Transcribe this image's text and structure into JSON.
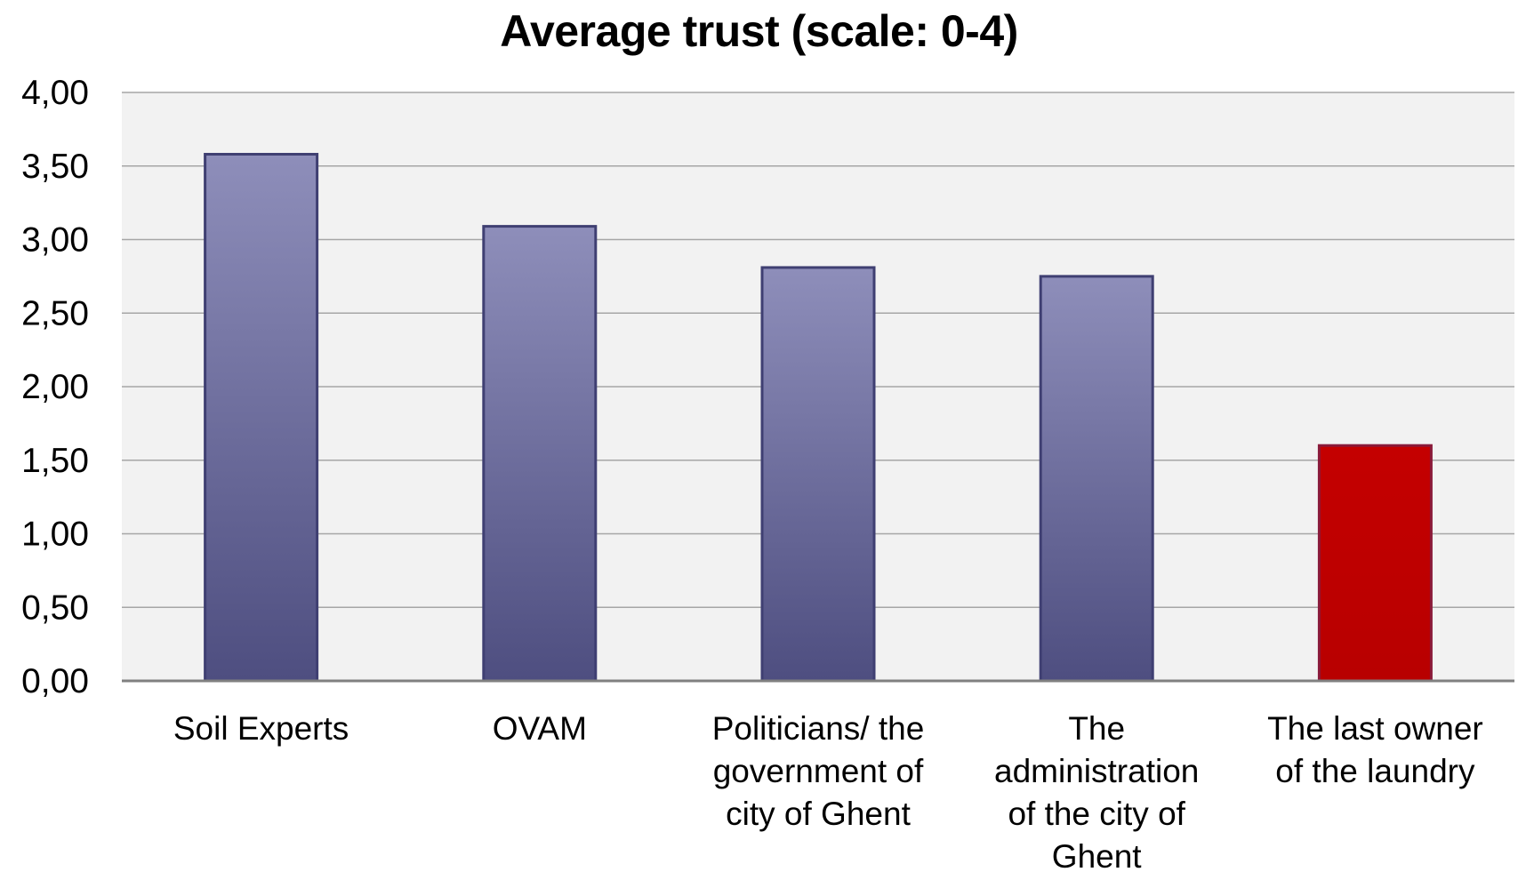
{
  "chart_data": {
    "type": "bar",
    "title": "Average trust (scale: 0-4)",
    "xlabel": "",
    "ylabel": "",
    "ylim": [
      0,
      4
    ],
    "y_ticks": [
      "0,00",
      "0,50",
      "1,00",
      "1,50",
      "2,00",
      "2,50",
      "3,00",
      "3,50",
      "4,00"
    ],
    "grid": true,
    "legend": "none",
    "categories": [
      "Soil Experts",
      "OVAM",
      "Politicians/ the government of city of Ghent",
      "The administration of the city of Ghent",
      "The last owner of the laundry"
    ],
    "category_label_lines": [
      [
        "Soil Experts"
      ],
      [
        "OVAM"
      ],
      [
        "Politicians/ the",
        "government of",
        "city of Ghent"
      ],
      [
        "The",
        "administration",
        "of the city of",
        "Ghent"
      ],
      [
        "The last owner",
        "of the laundry"
      ]
    ],
    "values": [
      3.58,
      3.09,
      2.81,
      2.75,
      1.6
    ],
    "bar_colors": [
      "#6a6a9e",
      "#6a6a9e",
      "#6a6a9e",
      "#6a6a9e",
      "#c00000"
    ],
    "colors": {
      "bar_default": "#6a6a9e",
      "bar_highlight": "#c00000",
      "plot_background": "#f2f2f2",
      "gridline": "#a6a6a6"
    }
  }
}
